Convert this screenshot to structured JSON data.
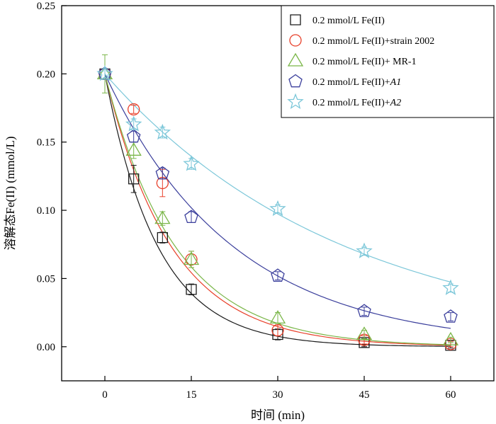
{
  "chart_data": {
    "type": "scatter",
    "xlabel": "时间 (min)",
    "ylabel": "溶解态Fe(II) (mmol/L)",
    "xlim": [
      -7.5,
      67.5
    ],
    "ylim": [
      -0.025,
      0.25
    ],
    "xticks": [
      0,
      15,
      30,
      45,
      60
    ],
    "xtick_labels": [
      "0",
      "15",
      "30",
      "45",
      "60"
    ],
    "yticks": [
      0.0,
      0.05,
      0.1,
      0.15,
      0.2,
      0.25
    ],
    "ytick_labels": [
      "0.00",
      "0.05",
      "0.10",
      "0.15",
      "0.20",
      "0.25"
    ],
    "grid": false,
    "legend_position": "top-right",
    "series": [
      {
        "name": "0.2 mmol/L Fe(II)",
        "color": "#1a1a1a",
        "marker": "square",
        "x": [
          0,
          5,
          10,
          15,
          30,
          45,
          60
        ],
        "y": [
          0.2,
          0.123,
          0.08,
          0.042,
          0.009,
          0.003,
          0.001
        ],
        "err": [
          0.004,
          0.01,
          0.004,
          0.004,
          0.004,
          0.003,
          0.002
        ],
        "fit_k": 0.109
      },
      {
        "name": "0.2 mmol/L Fe(II)+strain 2002",
        "color": "#e8402a",
        "marker": "circle",
        "x": [
          0,
          5,
          10,
          15,
          30,
          45,
          60
        ],
        "y": [
          0.2,
          0.174,
          0.12,
          0.064,
          0.012,
          0.005,
          0.002
        ],
        "err": [
          0.004,
          0.003,
          0.01,
          0.006,
          0.004,
          0.003,
          0.002
        ],
        "fit_k": 0.087
      },
      {
        "name": "0.2 mmol/L Fe(II)+ MR-1",
        "color": "#7ab648",
        "marker": "triangle",
        "x": [
          0,
          5,
          10,
          15,
          30,
          45,
          60
        ],
        "y": [
          0.2,
          0.144,
          0.094,
          0.064,
          0.021,
          0.009,
          0.005
        ],
        "err": [
          0.014,
          0.006,
          0.005,
          0.006,
          0.004,
          0.003,
          0.002
        ],
        "fit_k": 0.082
      },
      {
        "name": "0.2 mmol/L Fe(II)+A1",
        "label_plain": "0.2 mmol/L Fe(II)+",
        "label_italic": "A1",
        "color": "#3b3f9c",
        "marker": "pentagon",
        "x": [
          0,
          5,
          10,
          15,
          30,
          45,
          60
        ],
        "y": [
          0.2,
          0.154,
          0.127,
          0.095,
          0.052,
          0.026,
          0.022
        ],
        "err": [
          0.004,
          0.004,
          0.004,
          0.004,
          0.003,
          0.003,
          0.003
        ],
        "fit_k": 0.045
      },
      {
        "name": "0.2 mmol/L Fe(II)+A2",
        "label_plain": "0.2 mmol/L Fe(II)+",
        "label_italic": "A2",
        "color": "#7cc7d9",
        "marker": "star",
        "x": [
          0,
          5,
          10,
          15,
          30,
          45,
          60
        ],
        "y": [
          0.2,
          0.163,
          0.157,
          0.134,
          0.101,
          0.07,
          0.043
        ],
        "err": [
          0.004,
          0.004,
          0.004,
          0.004,
          0.003,
          0.003,
          0.003
        ],
        "fit_k": 0.024
      }
    ]
  }
}
